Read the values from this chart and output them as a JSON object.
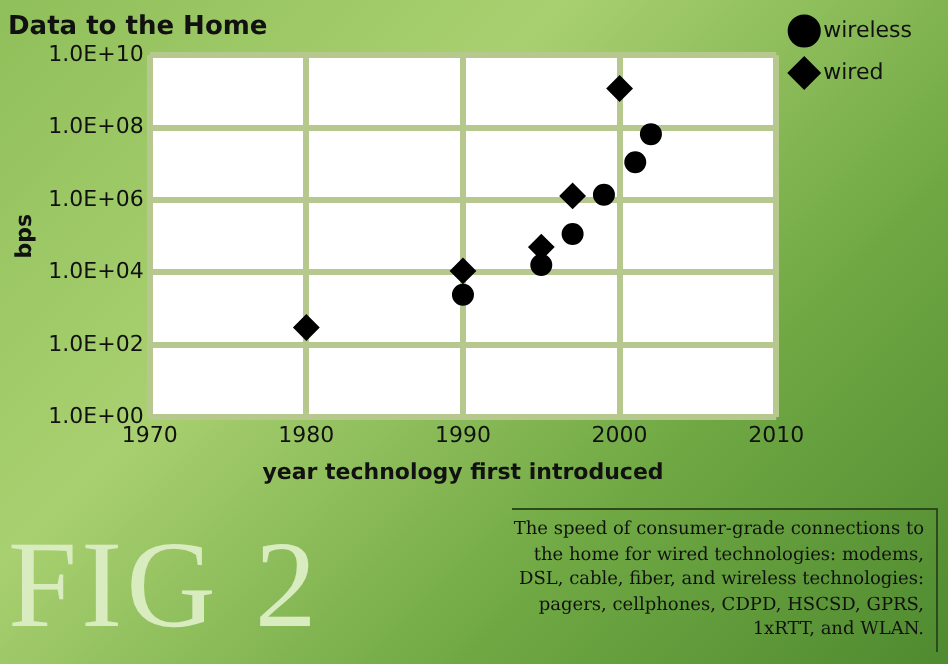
{
  "chart_data": {
    "type": "scatter",
    "title": "Data to the Home",
    "xlabel": "year technology first introduced",
    "ylabel": "bps",
    "series": [
      {
        "name": "wireless",
        "color": "#000000",
        "marker": "circle",
        "x": [
          1990,
          1995,
          1997,
          1999,
          2001,
          2002
        ],
        "values": [
          2400,
          16000,
          115000,
          1400000,
          11000000,
          66000000
        ]
      },
      {
        "name": "wired",
        "color": "#000000",
        "marker": "diamond",
        "x": [
          1980,
          1990,
          1995,
          1997,
          2000
        ],
        "values": [
          300,
          11000,
          50000,
          1300000,
          1200000000
        ]
      }
    ],
    "log": "y",
    "xlim": [
      1970,
      2010
    ],
    "xticks": [
      1970,
      1980,
      1990,
      2000,
      2010
    ],
    "ylim": [
      1,
      10000000000
    ],
    "yticks": [
      {
        "value": 1,
        "label": "1.0E+00"
      },
      {
        "value": 100,
        "label": "1.0E+02"
      },
      {
        "value": 10000,
        "label": "1.0E+04"
      },
      {
        "value": 1000000,
        "label": "1.0E+06"
      },
      {
        "value": 100000000,
        "label": "1.0E+08"
      },
      {
        "value": 10000000000,
        "label": "1.0E+10"
      }
    ],
    "grid": true,
    "legend": "top right",
    "annotations": [
      "FIG 2",
      "The speed of consumer-grade connections to the home for wired technologies: modems, DSL, cable, fiber, and wireless technologies: pagers, cellphones, CDPD, HSCSD, GPRS, 1xRTT, and WLAN."
    ]
  }
}
